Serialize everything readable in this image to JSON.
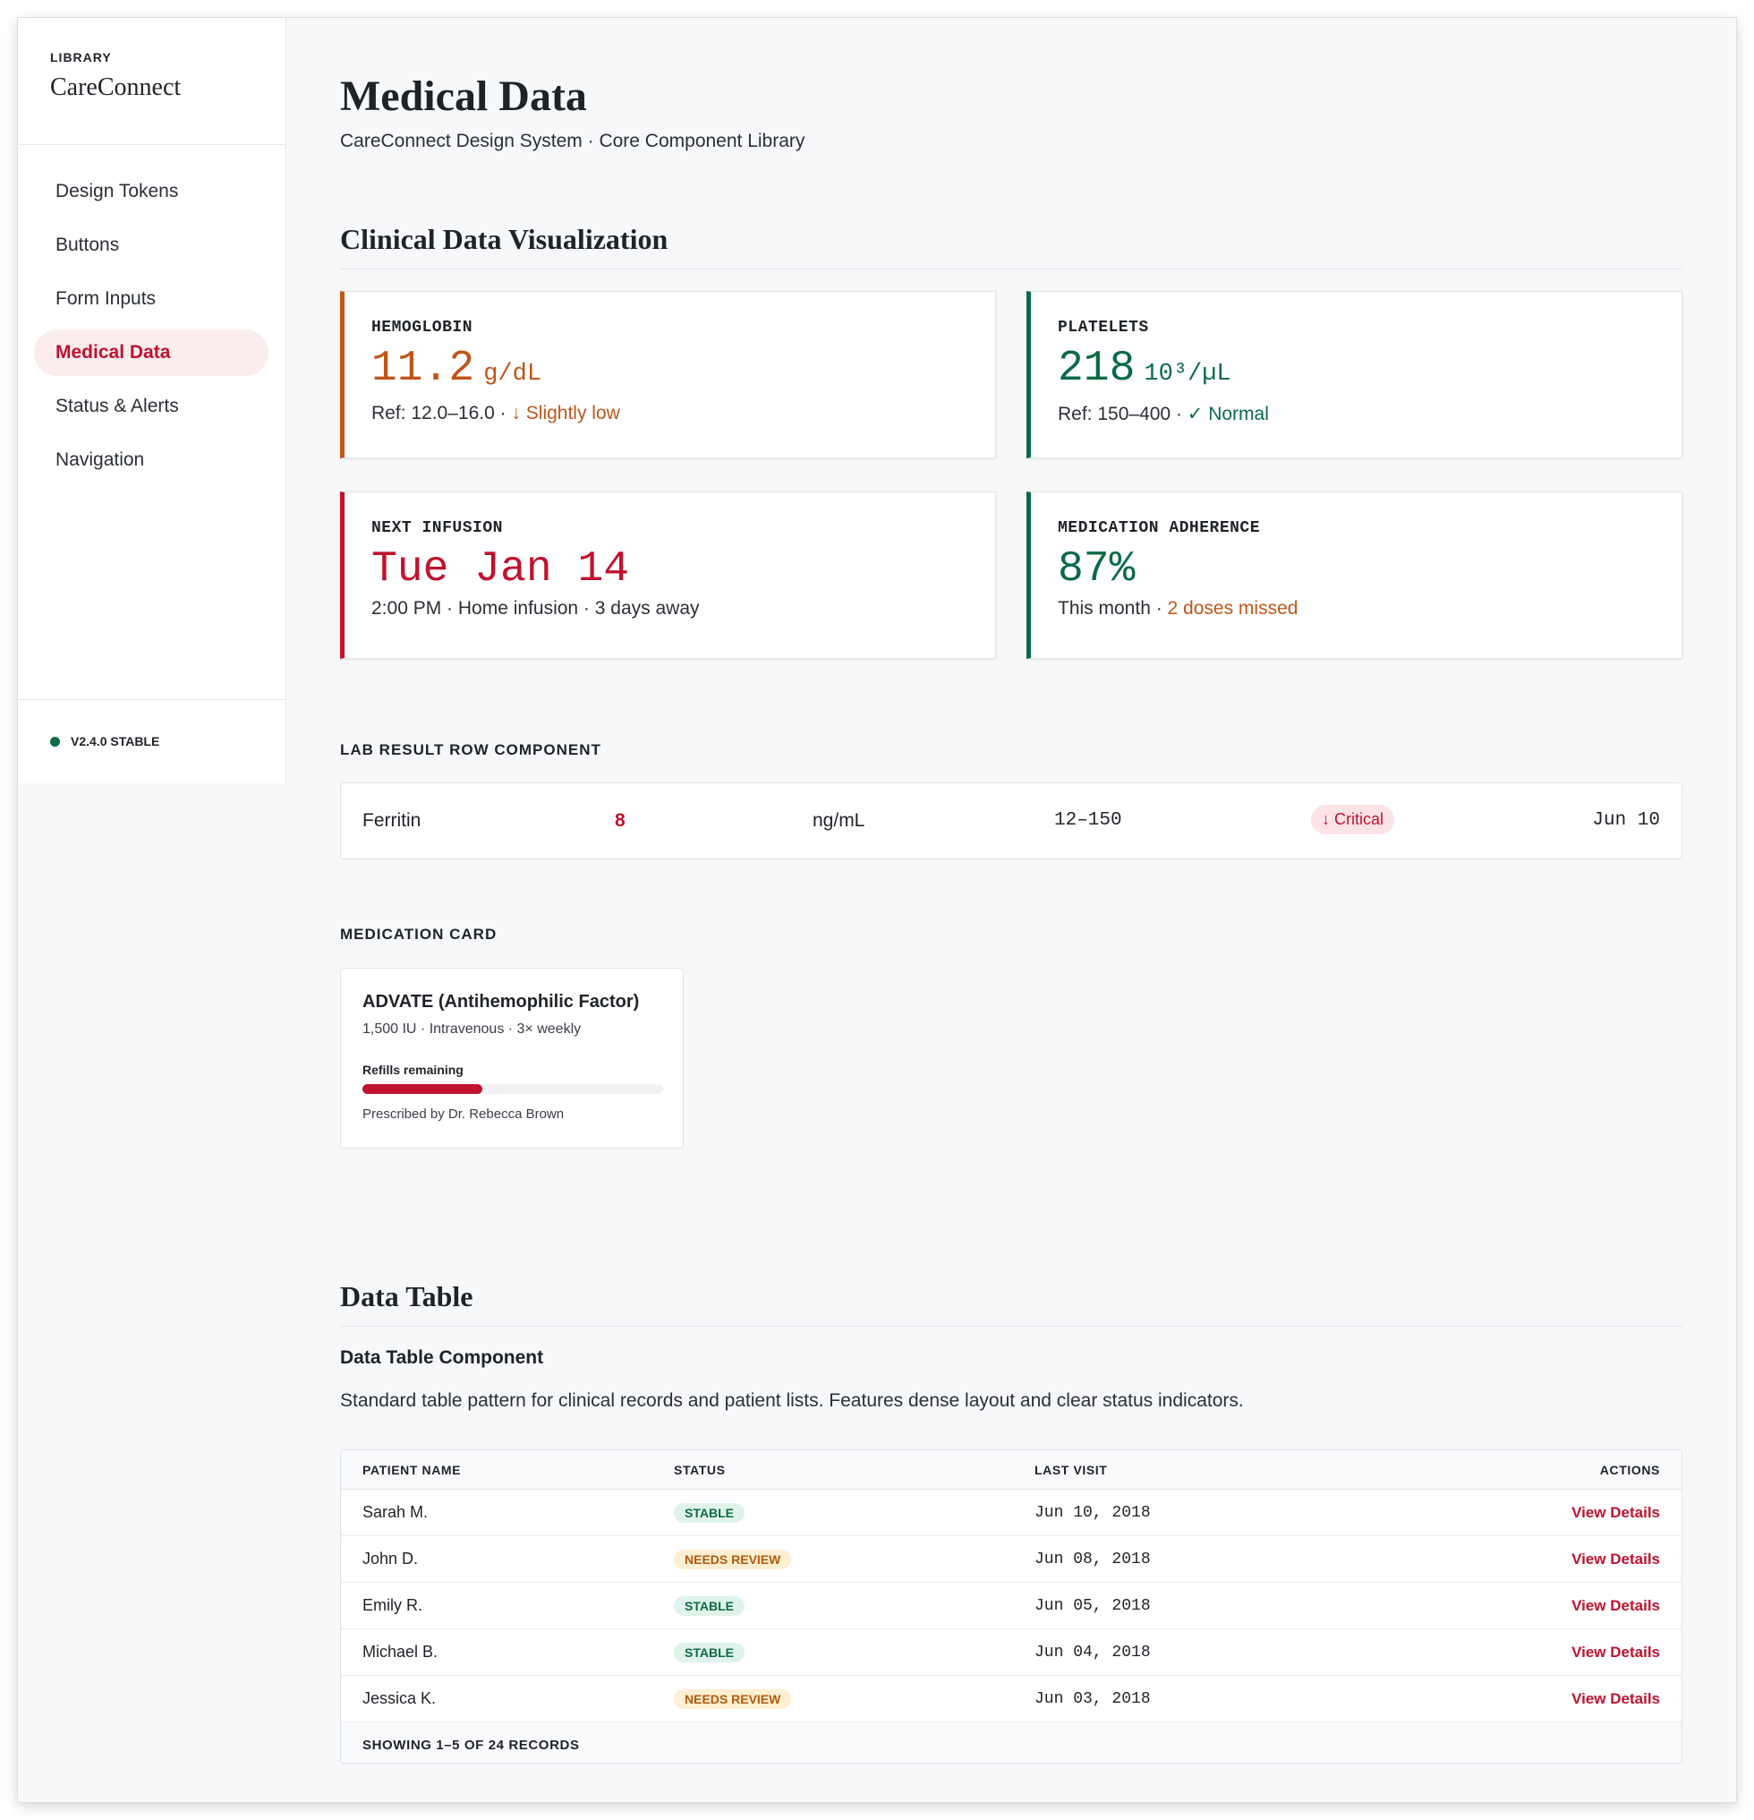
{
  "brand": {
    "eyebrow": "LIBRARY",
    "name": "CareConnect"
  },
  "nav": {
    "items": [
      {
        "label": "Design Tokens",
        "active": false
      },
      {
        "label": "Buttons",
        "active": false
      },
      {
        "label": "Form Inputs",
        "active": false
      },
      {
        "label": "Medical Data",
        "active": true
      },
      {
        "label": "Status & Alerts",
        "active": false
      },
      {
        "label": "Navigation",
        "active": false
      }
    ],
    "version": "V2.4.0 STABLE"
  },
  "page": {
    "title": "Medical Data",
    "subtitle": "CareConnect Design System · Core Component Library"
  },
  "clinical": {
    "title": "Clinical Data Visualization",
    "metrics": [
      {
        "label": "HEMOGLOBIN",
        "value": "11.2",
        "unit": "g/dL",
        "ref": "Ref: 12.0–16.0 · ",
        "flag": "↓ Slightly low"
      },
      {
        "label": "PLATELETS",
        "value": "218",
        "unit": "10³/µL",
        "ref": "Ref: 150–400 · ",
        "flag": "✓ Normal"
      },
      {
        "label": "NEXT INFUSION",
        "value": "Tue Jan 14",
        "unit": "",
        "ref": "2:00 PM · Home infusion · 3 days away",
        "flag": ""
      },
      {
        "label": "MEDICATION ADHERENCE",
        "value": "87%",
        "unit": "",
        "ref": "This month · ",
        "flag": "2 doses missed"
      }
    ]
  },
  "lab_row": {
    "section_label": "LAB RESULT ROW COMPONENT",
    "name": "Ferritin",
    "value": "8",
    "unit": "ng/mL",
    "range": "12–150",
    "status": "↓ Critical",
    "date": "Jun 10"
  },
  "medication": {
    "section_label": "MEDICATION CARD",
    "name": "ADVATE (Antihemophilic Factor)",
    "detail": "1,500 IU · Intravenous · 3× weekly",
    "refill_label": "Refills remaining",
    "refill_fraction": 0.4,
    "prescriber": "Prescribed by Dr. Rebecca Brown"
  },
  "data_table": {
    "section_title": "Data Table",
    "heading": "Data Table Component",
    "description": "Standard table pattern for clinical records and patient lists. Features dense layout and clear status indicators.",
    "columns": [
      "PATIENT NAME",
      "STATUS",
      "LAST VISIT",
      "ACTIONS"
    ],
    "rows": [
      {
        "name": "Sarah M.",
        "status": "STABLE",
        "visit": "Jun 10, 2018",
        "action": "View Details"
      },
      {
        "name": "John D.",
        "status": "NEEDS REVIEW",
        "visit": "Jun 08, 2018",
        "action": "View Details"
      },
      {
        "name": "Emily R.",
        "status": "STABLE",
        "visit": "Jun 05, 2018",
        "action": "View Details"
      },
      {
        "name": "Michael B.",
        "status": "STABLE",
        "visit": "Jun 04, 2018",
        "action": "View Details"
      },
      {
        "name": "Jessica K.",
        "status": "NEEDS REVIEW",
        "visit": "Jun 03, 2018",
        "action": "View Details"
      }
    ],
    "footer": "SHOWING 1–5 OF 24 RECORDS"
  },
  "colors": {
    "accent": "#c0122f",
    "warning": "#b45a0a",
    "success": "#0b6b45"
  }
}
